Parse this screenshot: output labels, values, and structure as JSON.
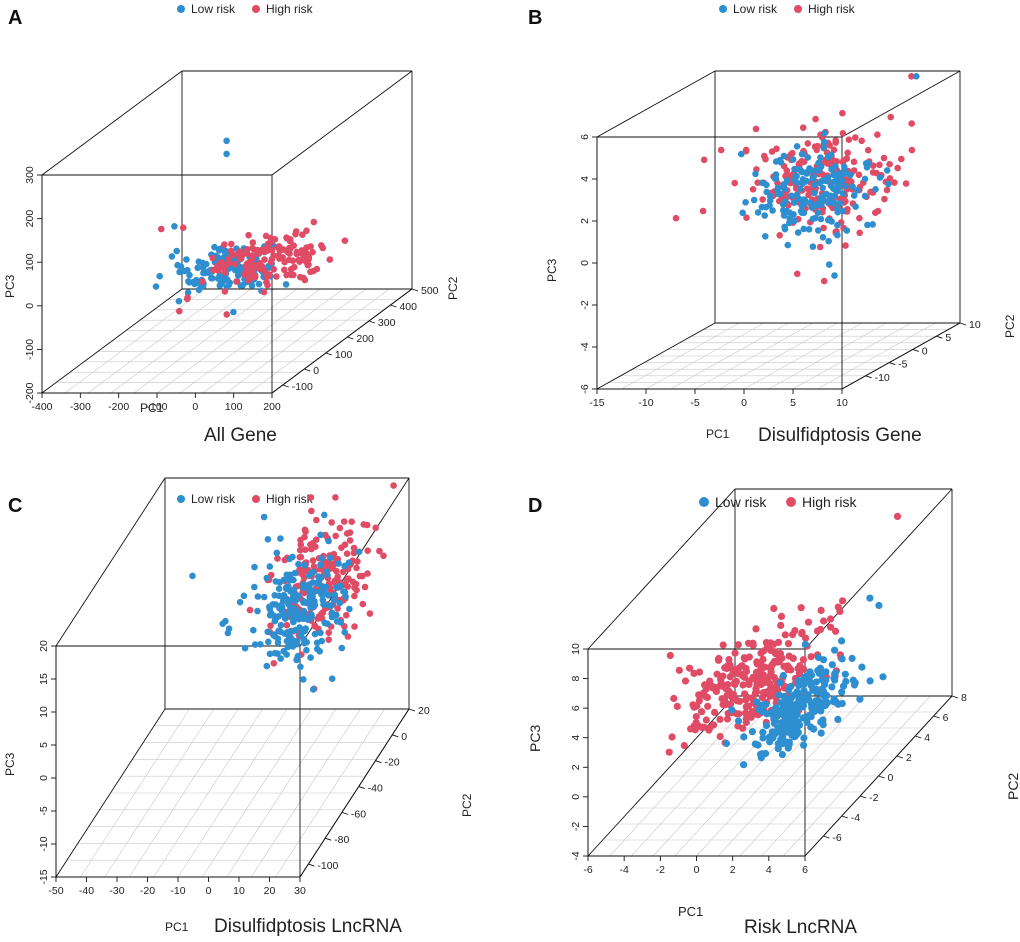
{
  "colors": {
    "low": "#2e8fd0",
    "high": "#e04b65",
    "frame": "#111111",
    "grid": "#c8c8c8"
  },
  "chart_data": [
    {
      "type": "scatter",
      "panel": "A",
      "caption": "All Gene",
      "legend": {
        "low": "Low risk",
        "high": "High risk"
      },
      "xlabel": "PC1",
      "ylabel": "PC2",
      "zlabel": "PC3",
      "xlim": [
        -400,
        200
      ],
      "ylim": [
        -150,
        500
      ],
      "zlim": [
        -200,
        300
      ],
      "x_ticks": [
        "-400",
        "-300",
        "-200",
        "-100",
        "0",
        "100",
        "200"
      ],
      "y_ticks": [
        "-100",
        "0",
        "100",
        "200",
        "300",
        "400",
        "500"
      ],
      "z_ticks": [
        "-200",
        "-100",
        "0",
        "100",
        "200",
        "300"
      ],
      "clusters": [
        {
          "group": "low",
          "n": 150,
          "center": [
            -20,
            30,
            20
          ],
          "spread": [
            55,
            55,
            18
          ]
        },
        {
          "group": "high",
          "n": 150,
          "center": [
            80,
            60,
            30
          ],
          "spread": [
            70,
            60,
            22
          ]
        }
      ],
      "points": [
        {
          "group": "low",
          "x": -115,
          "y": 200,
          "z": 250
        },
        {
          "group": "low",
          "x": -115,
          "y": 200,
          "z": 220
        },
        {
          "group": "low",
          "x": -150,
          "y": 20,
          "z": 120
        },
        {
          "group": "high",
          "x": -190,
          "y": 30,
          "z": 110
        },
        {
          "group": "high",
          "x": -130,
          "y": 25,
          "z": 115
        },
        {
          "group": "high",
          "x": -110,
          "y": 10,
          "z": -40
        },
        {
          "group": "high",
          "x": -115,
          "y": -20,
          "z": -60
        },
        {
          "group": "high",
          "x": 20,
          "y": -40,
          "z": -60
        },
        {
          "group": "low",
          "x": 60,
          "y": -80,
          "z": -40
        },
        {
          "group": "low",
          "x": -170,
          "y": -30,
          "z": 0
        }
      ]
    },
    {
      "type": "scatter",
      "panel": "B",
      "caption": "Disulfidptosis Gene",
      "legend": {
        "low": "Low risk",
        "high": "High risk"
      },
      "xlabel": "PC1",
      "ylabel": "PC2",
      "zlabel": "PC3",
      "xlim": [
        -15,
        10
      ],
      "ylim": [
        -15,
        10
      ],
      "zlim": [
        -6,
        6
      ],
      "x_ticks": [
        "-15",
        "-10",
        "-5",
        "0",
        "5",
        "10"
      ],
      "y_ticks": [
        "-10",
        "-5",
        "0",
        "5",
        "10"
      ],
      "z_ticks": [
        "-6",
        "-4",
        "-2",
        "0",
        "2",
        "4",
        "6"
      ],
      "clusters": [
        {
          "group": "high",
          "n": 220,
          "center": [
            1,
            0,
            2
          ],
          "spread": [
            3.5,
            3.5,
            1.2
          ]
        },
        {
          "group": "low",
          "n": 180,
          "center": [
            0,
            -1,
            1.5
          ],
          "spread": [
            2.6,
            2.6,
            1.1
          ]
        }
      ],
      "points": [
        {
          "group": "high",
          "x": -6,
          "y": 0,
          "z": 4.5
        },
        {
          "group": "high",
          "x": -7,
          "y": 0,
          "z": 3.5
        },
        {
          "group": "low",
          "x": -7.5,
          "y": 0,
          "z": 3.3
        },
        {
          "group": "high",
          "x": 0,
          "y": 2,
          "z": -3
        },
        {
          "group": "high",
          "x": 6,
          "y": 8,
          "z": 6
        },
        {
          "group": "low",
          "x": 6.5,
          "y": 8,
          "z": 6.1
        },
        {
          "group": "high",
          "x": 7,
          "y": 6,
          "z": 4
        }
      ]
    },
    {
      "type": "scatter",
      "panel": "C",
      "caption": "Disulfidptosis LncRNA",
      "legend": {
        "low": "Low risk",
        "high": "High risk"
      },
      "xlabel": "PC1",
      "ylabel": "PC2",
      "zlabel": "PC3",
      "xlim": [
        -50,
        30
      ],
      "ylim": [
        -110,
        20
      ],
      "zlim": [
        -15,
        20
      ],
      "x_ticks": [
        "-50",
        "-40",
        "-30",
        "-20",
        "-10",
        "0",
        "10",
        "20",
        "30"
      ],
      "y_ticks": [
        "-100",
        "-80",
        "-60",
        "-40",
        "-20",
        "0",
        "20"
      ],
      "z_ticks": [
        "-15",
        "-10",
        "-5",
        "0",
        "5",
        "10",
        "15",
        "20"
      ],
      "clusters": [
        {
          "group": "high",
          "n": 200,
          "center": [
            10,
            -10,
            10
          ],
          "spread": [
            8,
            14,
            4
          ]
        },
        {
          "group": "low",
          "n": 220,
          "center": [
            4,
            -20,
            8
          ],
          "spread": [
            7,
            14,
            4
          ]
        }
      ],
      "points": [
        {
          "group": "low",
          "x": -30,
          "y": -20,
          "z": 13
        },
        {
          "group": "low",
          "x": -12,
          "y": 0,
          "z": 18
        },
        {
          "group": "high",
          "x": 2,
          "y": 5,
          "z": 21
        },
        {
          "group": "high",
          "x": 10,
          "y": 5,
          "z": 20
        },
        {
          "group": "low",
          "x": -18,
          "y": -20,
          "z": 5
        },
        {
          "group": "low",
          "x": -10,
          "y": -30,
          "z": 4
        }
      ]
    },
    {
      "type": "scatter",
      "panel": "D",
      "caption": "Risk LncRNA",
      "legend": {
        "low": "Low risk",
        "high": "High risk"
      },
      "xlabel": "PC1",
      "ylabel": "PC2",
      "zlabel": "PC3",
      "xlim": [
        -6,
        6
      ],
      "ylim": [
        -8,
        8
      ],
      "zlim": [
        -4,
        10
      ],
      "x_ticks": [
        "-6",
        "-4",
        "-2",
        "0",
        "2",
        "4",
        "6"
      ],
      "y_ticks": [
        "-6",
        "-4",
        "-2",
        "0",
        "2",
        "4",
        "6",
        "8"
      ],
      "z_ticks": [
        "-4",
        "-2",
        "0",
        "2",
        "4",
        "6",
        "8",
        "10"
      ],
      "clusters": [
        {
          "group": "high",
          "n": 260,
          "center": [
            -0.5,
            -1,
            3
          ],
          "spread": [
            1.6,
            2.5,
            1.0
          ]
        },
        {
          "group": "low",
          "n": 240,
          "center": [
            2.2,
            -1.5,
            1.5
          ],
          "spread": [
            1.0,
            2.0,
            0.7
          ]
        }
      ],
      "points": [
        {
          "group": "high",
          "x": 4,
          "y": 6,
          "z": 9.5
        },
        {
          "group": "high",
          "x": -4.5,
          "y": -2,
          "z": 5.5
        },
        {
          "group": "high",
          "x": -4,
          "y": -2,
          "z": 4.5
        },
        {
          "group": "low",
          "x": 4,
          "y": 3,
          "z": 6
        },
        {
          "group": "low",
          "x": 4.5,
          "y": 3,
          "z": 5.5
        },
        {
          "group": "high",
          "x": 3,
          "y": 2,
          "z": 6.5
        }
      ]
    }
  ]
}
